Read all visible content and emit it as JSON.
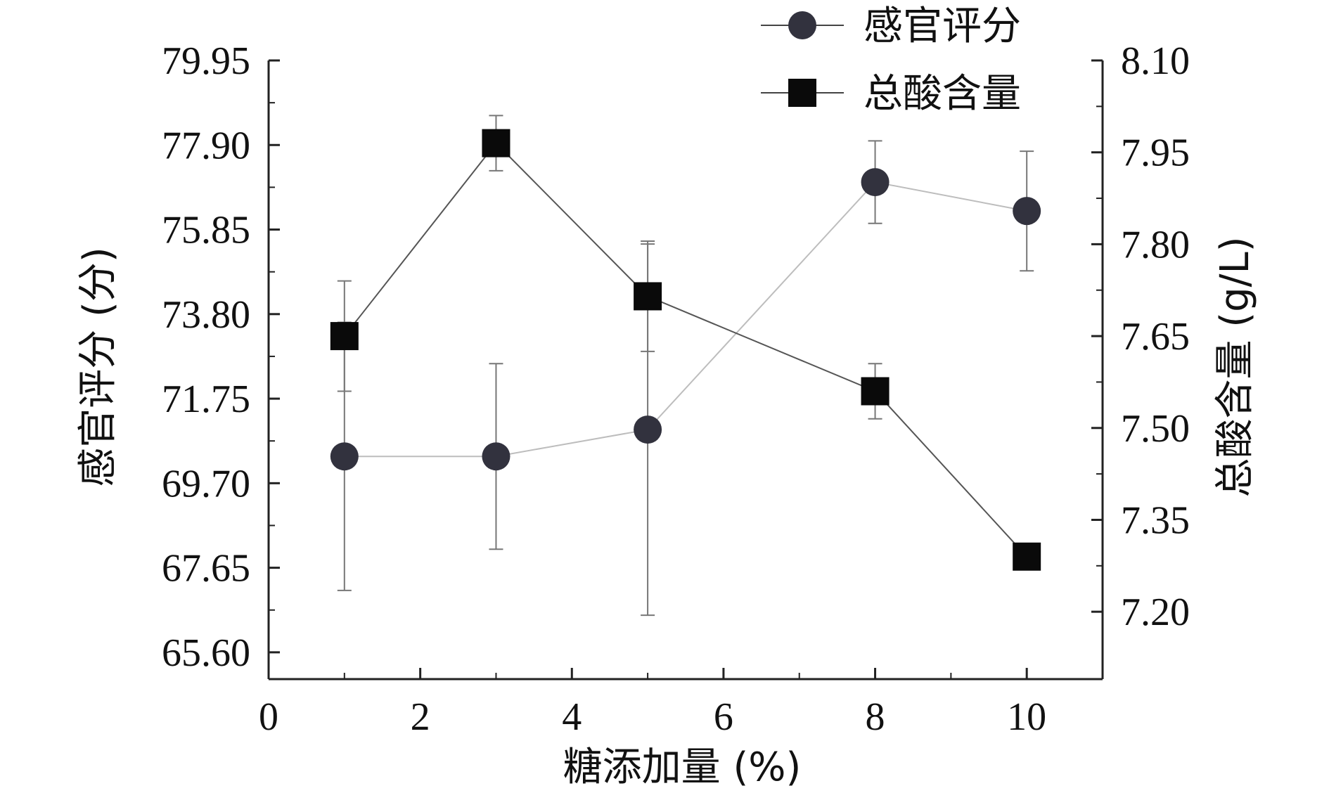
{
  "chart_data": {
    "type": "line",
    "xlabel": "糖添加量 (%)",
    "ylabel_left": "感官评分 (分)",
    "ylabel_right": "总酸含量 (g/L)",
    "x_range": [
      0,
      11
    ],
    "x_ticks": [
      0,
      2,
      4,
      6,
      8,
      10
    ],
    "x_tick_labels": [
      "0",
      "2",
      "4",
      "6",
      "8",
      "10"
    ],
    "y_left_range": [
      64.95,
      79.95
    ],
    "y_left_ticks": [
      65.6,
      67.65,
      69.7,
      71.75,
      73.8,
      75.85,
      77.9,
      79.95
    ],
    "y_left_tick_labels": [
      "65.60",
      "67.65",
      "69.70",
      "71.75",
      "73.80",
      "75.85",
      "77.90",
      "79.95"
    ],
    "y_right_range": [
      7.09,
      8.1
    ],
    "y_right_ticks": [
      7.2,
      7.35,
      7.5,
      7.65,
      7.8,
      7.95,
      8.1
    ],
    "y_right_tick_labels": [
      "7.20",
      "7.35",
      "7.50",
      "7.65",
      "7.80",
      "7.95",
      "8.10"
    ],
    "legend_position": "top-right",
    "grid": false,
    "series": [
      {
        "name": "感官评分",
        "axis": "left",
        "marker": "circle",
        "color": "#32323e",
        "line_color": "#bdbdbd",
        "x": [
          1,
          3,
          5,
          8,
          10
        ],
        "y": [
          70.35,
          70.35,
          71.0,
          77.0,
          76.3
        ],
        "err": [
          3.25,
          2.25,
          4.5,
          1.0,
          1.45
        ]
      },
      {
        "name": "总酸含量",
        "axis": "right",
        "marker": "square",
        "color": "#0a0a0a",
        "line_color": "#555555",
        "x": [
          1,
          3,
          5,
          8,
          10
        ],
        "y": [
          7.65,
          7.965,
          7.715,
          7.56,
          7.29
        ],
        "err": [
          0.09,
          0.045,
          0.09,
          0.045,
          0
        ]
      }
    ]
  }
}
